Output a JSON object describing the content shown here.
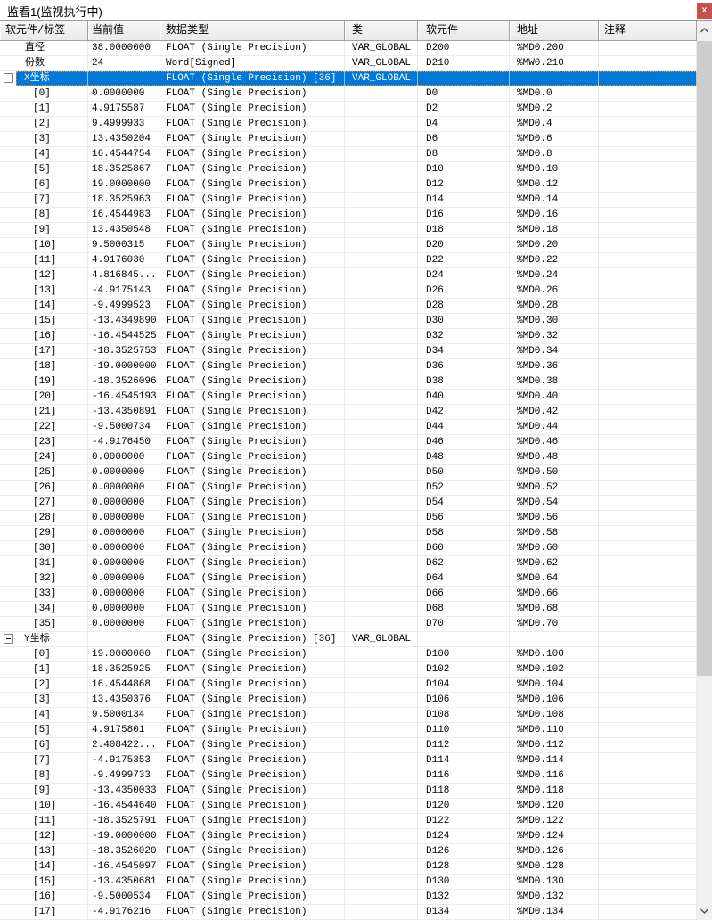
{
  "window": {
    "title": "监看1(监视执行中)",
    "close_label": "x"
  },
  "colors": {
    "selection": "#0078d7",
    "selection_border": "#e0923f",
    "close_button": "#c75050"
  },
  "columns": [
    "软元件/标签",
    "当前值",
    "数据类型",
    "类",
    "软元件",
    "地址",
    "注释"
  ],
  "rows": [
    {
      "kind": "var",
      "label": "直径",
      "value": "38.0000000",
      "dtype": "FLOAT (Single Precision)",
      "cls": "VAR_GLOBAL",
      "dev": "D200",
      "addr": "%MD0.200",
      "note": ""
    },
    {
      "kind": "var",
      "label": "份数",
      "value": "24",
      "dtype": "Word[Signed]",
      "cls": "VAR_GLOBAL",
      "dev": "D210",
      "addr": "%MW0.210",
      "note": ""
    },
    {
      "kind": "group",
      "sel": true,
      "label": "X坐标",
      "value": "",
      "dtype": "FLOAT (Single Precision) [36]",
      "cls": "VAR_GLOBAL",
      "dev": "",
      "addr": "",
      "note": ""
    },
    {
      "kind": "elem",
      "label": "[0]",
      "value": "0.0000000",
      "dtype": "FLOAT (Single Precision)",
      "cls": "",
      "dev": "D0",
      "addr": "%MD0.0",
      "note": ""
    },
    {
      "kind": "elem",
      "label": "[1]",
      "value": "4.9175587",
      "dtype": "FLOAT (Single Precision)",
      "cls": "",
      "dev": "D2",
      "addr": "%MD0.2",
      "note": ""
    },
    {
      "kind": "elem",
      "label": "[2]",
      "value": "9.4999933",
      "dtype": "FLOAT (Single Precision)",
      "cls": "",
      "dev": "D4",
      "addr": "%MD0.4",
      "note": ""
    },
    {
      "kind": "elem",
      "label": "[3]",
      "value": "13.4350204",
      "dtype": "FLOAT (Single Precision)",
      "cls": "",
      "dev": "D6",
      "addr": "%MD0.6",
      "note": ""
    },
    {
      "kind": "elem",
      "label": "[4]",
      "value": "16.4544754",
      "dtype": "FLOAT (Single Precision)",
      "cls": "",
      "dev": "D8",
      "addr": "%MD0.8",
      "note": ""
    },
    {
      "kind": "elem",
      "label": "[5]",
      "value": "18.3525867",
      "dtype": "FLOAT (Single Precision)",
      "cls": "",
      "dev": "D10",
      "addr": "%MD0.10",
      "note": ""
    },
    {
      "kind": "elem",
      "label": "[6]",
      "value": "19.0000000",
      "dtype": "FLOAT (Single Precision)",
      "cls": "",
      "dev": "D12",
      "addr": "%MD0.12",
      "note": ""
    },
    {
      "kind": "elem",
      "label": "[7]",
      "value": "18.3525963",
      "dtype": "FLOAT (Single Precision)",
      "cls": "",
      "dev": "D14",
      "addr": "%MD0.14",
      "note": ""
    },
    {
      "kind": "elem",
      "label": "[8]",
      "value": "16.4544983",
      "dtype": "FLOAT (Single Precision)",
      "cls": "",
      "dev": "D16",
      "addr": "%MD0.16",
      "note": ""
    },
    {
      "kind": "elem",
      "label": "[9]",
      "value": "13.4350548",
      "dtype": "FLOAT (Single Precision)",
      "cls": "",
      "dev": "D18",
      "addr": "%MD0.18",
      "note": ""
    },
    {
      "kind": "elem",
      "label": "[10]",
      "value": "9.5000315",
      "dtype": "FLOAT (Single Precision)",
      "cls": "",
      "dev": "D20",
      "addr": "%MD0.20",
      "note": ""
    },
    {
      "kind": "elem",
      "label": "[11]",
      "value": "4.9176030",
      "dtype": "FLOAT (Single Precision)",
      "cls": "",
      "dev": "D22",
      "addr": "%MD0.22",
      "note": ""
    },
    {
      "kind": "elem",
      "label": "[12]",
      "value": "4.816845...",
      "dtype": "FLOAT (Single Precision)",
      "cls": "",
      "dev": "D24",
      "addr": "%MD0.24",
      "note": ""
    },
    {
      "kind": "elem",
      "label": "[13]",
      "value": "-4.9175143",
      "dtype": "FLOAT (Single Precision)",
      "cls": "",
      "dev": "D26",
      "addr": "%MD0.26",
      "note": ""
    },
    {
      "kind": "elem",
      "label": "[14]",
      "value": "-9.4999523",
      "dtype": "FLOAT (Single Precision)",
      "cls": "",
      "dev": "D28",
      "addr": "%MD0.28",
      "note": ""
    },
    {
      "kind": "elem",
      "label": "[15]",
      "value": "-13.4349890",
      "dtype": "FLOAT (Single Precision)",
      "cls": "",
      "dev": "D30",
      "addr": "%MD0.30",
      "note": ""
    },
    {
      "kind": "elem",
      "label": "[16]",
      "value": "-16.4544525",
      "dtype": "FLOAT (Single Precision)",
      "cls": "",
      "dev": "D32",
      "addr": "%MD0.32",
      "note": ""
    },
    {
      "kind": "elem",
      "label": "[17]",
      "value": "-18.3525753",
      "dtype": "FLOAT (Single Precision)",
      "cls": "",
      "dev": "D34",
      "addr": "%MD0.34",
      "note": ""
    },
    {
      "kind": "elem",
      "label": "[18]",
      "value": "-19.0000000",
      "dtype": "FLOAT (Single Precision)",
      "cls": "",
      "dev": "D36",
      "addr": "%MD0.36",
      "note": ""
    },
    {
      "kind": "elem",
      "label": "[19]",
      "value": "-18.3526096",
      "dtype": "FLOAT (Single Precision)",
      "cls": "",
      "dev": "D38",
      "addr": "%MD0.38",
      "note": ""
    },
    {
      "kind": "elem",
      "label": "[20]",
      "value": "-16.4545193",
      "dtype": "FLOAT (Single Precision)",
      "cls": "",
      "dev": "D40",
      "addr": "%MD0.40",
      "note": ""
    },
    {
      "kind": "elem",
      "label": "[21]",
      "value": "-13.4350891",
      "dtype": "FLOAT (Single Precision)",
      "cls": "",
      "dev": "D42",
      "addr": "%MD0.42",
      "note": ""
    },
    {
      "kind": "elem",
      "label": "[22]",
      "value": "-9.5000734",
      "dtype": "FLOAT (Single Precision)",
      "cls": "",
      "dev": "D44",
      "addr": "%MD0.44",
      "note": ""
    },
    {
      "kind": "elem",
      "label": "[23]",
      "value": "-4.9176450",
      "dtype": "FLOAT (Single Precision)",
      "cls": "",
      "dev": "D46",
      "addr": "%MD0.46",
      "note": ""
    },
    {
      "kind": "elem",
      "label": "[24]",
      "value": "0.0000000",
      "dtype": "FLOAT (Single Precision)",
      "cls": "",
      "dev": "D48",
      "addr": "%MD0.48",
      "note": ""
    },
    {
      "kind": "elem",
      "label": "[25]",
      "value": "0.0000000",
      "dtype": "FLOAT (Single Precision)",
      "cls": "",
      "dev": "D50",
      "addr": "%MD0.50",
      "note": ""
    },
    {
      "kind": "elem",
      "label": "[26]",
      "value": "0.0000000",
      "dtype": "FLOAT (Single Precision)",
      "cls": "",
      "dev": "D52",
      "addr": "%MD0.52",
      "note": ""
    },
    {
      "kind": "elem",
      "label": "[27]",
      "value": "0.0000000",
      "dtype": "FLOAT (Single Precision)",
      "cls": "",
      "dev": "D54",
      "addr": "%MD0.54",
      "note": ""
    },
    {
      "kind": "elem",
      "label": "[28]",
      "value": "0.0000000",
      "dtype": "FLOAT (Single Precision)",
      "cls": "",
      "dev": "D56",
      "addr": "%MD0.56",
      "note": ""
    },
    {
      "kind": "elem",
      "label": "[29]",
      "value": "0.0000000",
      "dtype": "FLOAT (Single Precision)",
      "cls": "",
      "dev": "D58",
      "addr": "%MD0.58",
      "note": ""
    },
    {
      "kind": "elem",
      "label": "[30]",
      "value": "0.0000000",
      "dtype": "FLOAT (Single Precision)",
      "cls": "",
      "dev": "D60",
      "addr": "%MD0.60",
      "note": ""
    },
    {
      "kind": "elem",
      "label": "[31]",
      "value": "0.0000000",
      "dtype": "FLOAT (Single Precision)",
      "cls": "",
      "dev": "D62",
      "addr": "%MD0.62",
      "note": ""
    },
    {
      "kind": "elem",
      "label": "[32]",
      "value": "0.0000000",
      "dtype": "FLOAT (Single Precision)",
      "cls": "",
      "dev": "D64",
      "addr": "%MD0.64",
      "note": ""
    },
    {
      "kind": "elem",
      "label": "[33]",
      "value": "0.0000000",
      "dtype": "FLOAT (Single Precision)",
      "cls": "",
      "dev": "D66",
      "addr": "%MD0.66",
      "note": ""
    },
    {
      "kind": "elem",
      "label": "[34]",
      "value": "0.0000000",
      "dtype": "FLOAT (Single Precision)",
      "cls": "",
      "dev": "D68",
      "addr": "%MD0.68",
      "note": ""
    },
    {
      "kind": "elem",
      "label": "[35]",
      "value": "0.0000000",
      "dtype": "FLOAT (Single Precision)",
      "cls": "",
      "dev": "D70",
      "addr": "%MD0.70",
      "note": ""
    },
    {
      "kind": "group",
      "label": "Y坐标",
      "value": "",
      "dtype": "FLOAT (Single Precision) [36]",
      "cls": "VAR_GLOBAL",
      "dev": "",
      "addr": "",
      "note": ""
    },
    {
      "kind": "elem",
      "label": "[0]",
      "value": "19.0000000",
      "dtype": "FLOAT (Single Precision)",
      "cls": "",
      "dev": "D100",
      "addr": "%MD0.100",
      "note": ""
    },
    {
      "kind": "elem",
      "label": "[1]",
      "value": "18.3525925",
      "dtype": "FLOAT (Single Precision)",
      "cls": "",
      "dev": "D102",
      "addr": "%MD0.102",
      "note": ""
    },
    {
      "kind": "elem",
      "label": "[2]",
      "value": "16.4544868",
      "dtype": "FLOAT (Single Precision)",
      "cls": "",
      "dev": "D104",
      "addr": "%MD0.104",
      "note": ""
    },
    {
      "kind": "elem",
      "label": "[3]",
      "value": "13.4350376",
      "dtype": "FLOAT (Single Precision)",
      "cls": "",
      "dev": "D106",
      "addr": "%MD0.106",
      "note": ""
    },
    {
      "kind": "elem",
      "label": "[4]",
      "value": "9.5000134",
      "dtype": "FLOAT (Single Precision)",
      "cls": "",
      "dev": "D108",
      "addr": "%MD0.108",
      "note": ""
    },
    {
      "kind": "elem",
      "label": "[5]",
      "value": "4.9175801",
      "dtype": "FLOAT (Single Precision)",
      "cls": "",
      "dev": "D110",
      "addr": "%MD0.110",
      "note": ""
    },
    {
      "kind": "elem",
      "label": "[6]",
      "value": "2.408422...",
      "dtype": "FLOAT (Single Precision)",
      "cls": "",
      "dev": "D112",
      "addr": "%MD0.112",
      "note": ""
    },
    {
      "kind": "elem",
      "label": "[7]",
      "value": "-4.9175353",
      "dtype": "FLOAT (Single Precision)",
      "cls": "",
      "dev": "D114",
      "addr": "%MD0.114",
      "note": ""
    },
    {
      "kind": "elem",
      "label": "[8]",
      "value": "-9.4999733",
      "dtype": "FLOAT (Single Precision)",
      "cls": "",
      "dev": "D116",
      "addr": "%MD0.116",
      "note": ""
    },
    {
      "kind": "elem",
      "label": "[9]",
      "value": "-13.4350033",
      "dtype": "FLOAT (Single Precision)",
      "cls": "",
      "dev": "D118",
      "addr": "%MD0.118",
      "note": ""
    },
    {
      "kind": "elem",
      "label": "[10]",
      "value": "-16.4544640",
      "dtype": "FLOAT (Single Precision)",
      "cls": "",
      "dev": "D120",
      "addr": "%MD0.120",
      "note": ""
    },
    {
      "kind": "elem",
      "label": "[11]",
      "value": "-18.3525791",
      "dtype": "FLOAT (Single Precision)",
      "cls": "",
      "dev": "D122",
      "addr": "%MD0.122",
      "note": ""
    },
    {
      "kind": "elem",
      "label": "[12]",
      "value": "-19.0000000",
      "dtype": "FLOAT (Single Precision)",
      "cls": "",
      "dev": "D124",
      "addr": "%MD0.124",
      "note": ""
    },
    {
      "kind": "elem",
      "label": "[13]",
      "value": "-18.3526020",
      "dtype": "FLOAT (Single Precision)",
      "cls": "",
      "dev": "D126",
      "addr": "%MD0.126",
      "note": ""
    },
    {
      "kind": "elem",
      "label": "[14]",
      "value": "-16.4545097",
      "dtype": "FLOAT (Single Precision)",
      "cls": "",
      "dev": "D128",
      "addr": "%MD0.128",
      "note": ""
    },
    {
      "kind": "elem",
      "label": "[15]",
      "value": "-13.4350681",
      "dtype": "FLOAT (Single Precision)",
      "cls": "",
      "dev": "D130",
      "addr": "%MD0.130",
      "note": ""
    },
    {
      "kind": "elem",
      "label": "[16]",
      "value": "-9.5000534",
      "dtype": "FLOAT (Single Precision)",
      "cls": "",
      "dev": "D132",
      "addr": "%MD0.132",
      "note": ""
    },
    {
      "kind": "elem",
      "label": "[17]",
      "value": "-4.9176216",
      "dtype": "FLOAT (Single Precision)",
      "cls": "",
      "dev": "D134",
      "addr": "%MD0.134",
      "note": ""
    }
  ]
}
